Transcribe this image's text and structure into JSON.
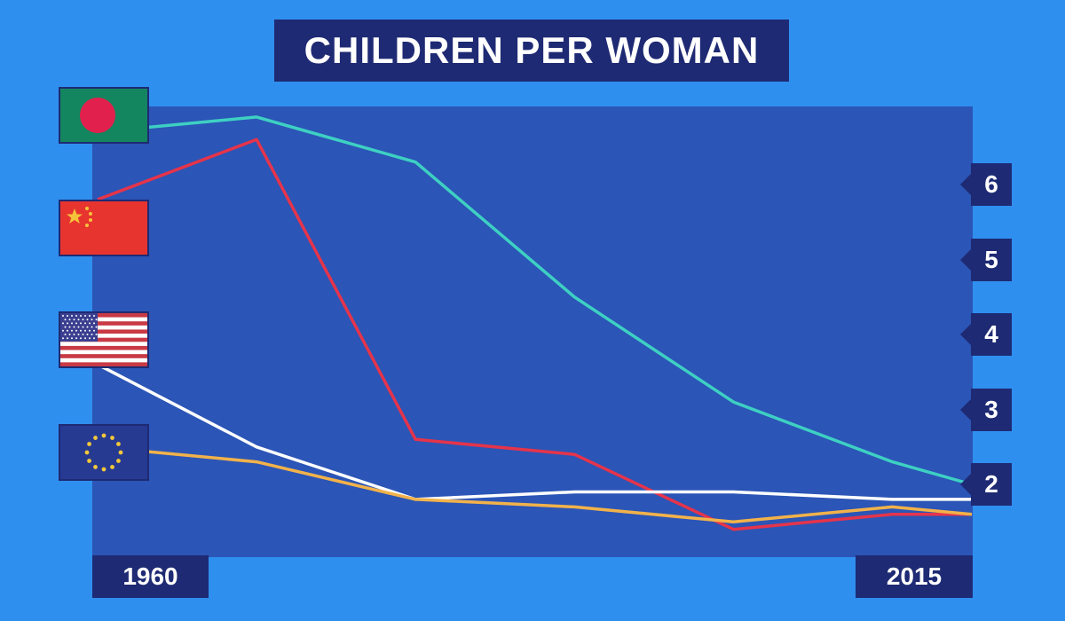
{
  "title": "CHILDREN PER WOMAN",
  "x_start_label": "1960",
  "x_end_label": "2015",
  "flags": [
    {
      "country": "bangladesh",
      "icon": "bangladesh-flag-icon",
      "field": "#13865f",
      "disc": "#e1204d"
    },
    {
      "country": "china",
      "icon": "china-flag-icon",
      "field": "#e8342f",
      "star": "#f5c33a"
    },
    {
      "country": "usa",
      "icon": "usa-flag-icon",
      "stripe_red": "#c83a45",
      "canton": "#3a3f8f"
    },
    {
      "country": "eu",
      "icon": "eu-flag-icon",
      "field": "#273a92",
      "star": "#f4c839"
    }
  ],
  "chart_data": {
    "type": "line",
    "x": [
      1960,
      1970,
      1980,
      1990,
      2000,
      2010,
      2015
    ],
    "xlim": [
      1960,
      2015
    ],
    "ylim": [
      1.3,
      6.6
    ],
    "yticks": [
      6,
      5,
      4,
      3,
      2
    ],
    "grid": false,
    "legend": "flags on left",
    "series": [
      {
        "color": "#3ed0c3",
        "values": [
          6.7,
          6.9,
          6.3,
          4.5,
          3.1,
          2.3,
          2.0
        ]
      },
      {
        "color": "#e5344b",
        "values": [
          5.8,
          6.6,
          2.6,
          2.4,
          1.4,
          1.6,
          1.6
        ]
      },
      {
        "color": "#ffffff",
        "values": [
          3.6,
          2.5,
          1.8,
          1.9,
          1.9,
          1.8,
          1.8
        ]
      },
      {
        "color": "#f2b24a",
        "values": [
          2.5,
          2.3,
          1.8,
          1.7,
          1.5,
          1.7,
          1.6
        ]
      }
    ]
  }
}
